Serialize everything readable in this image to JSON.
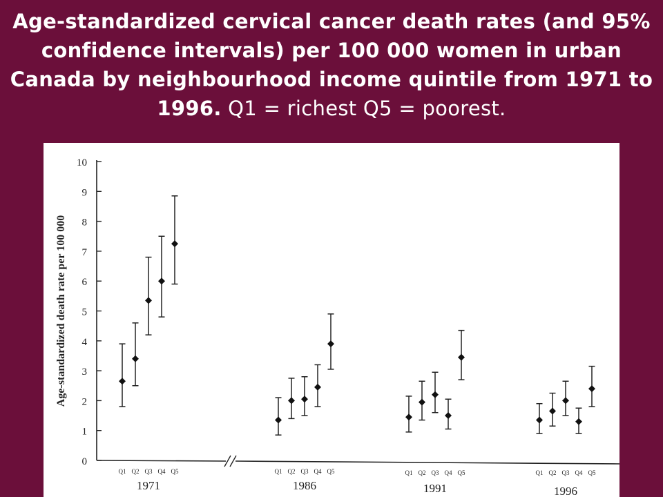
{
  "title": {
    "bold_part": "Age-standardized cervical cancer death rates (and 95% confidence intervals) per 100 000 women in urban Canada by neighbourhood income quintile from 1971 to 1996.",
    "normal_part": " Q1 = richest Q5 = poorest."
  },
  "chart_data": {
    "type": "scatter",
    "ylabel": "Age-standardized death rate per 100 000",
    "ylim": [
      0,
      10
    ],
    "yticks": [
      "0",
      "1",
      "2",
      "3",
      "4",
      "5",
      "6",
      "7",
      "8",
      "9",
      "10"
    ],
    "quintile_labels": [
      "Q1",
      "Q2",
      "Q3",
      "Q4",
      "Q5"
    ],
    "groups": [
      {
        "year": "1971",
        "values": [
          2.65,
          3.4,
          5.35,
          6.0,
          7.25
        ],
        "ci_low": [
          1.8,
          2.5,
          4.2,
          4.8,
          5.9
        ],
        "ci_high": [
          3.9,
          4.6,
          6.8,
          7.5,
          8.85
        ]
      },
      {
        "year": "1986",
        "values": [
          1.35,
          2.0,
          2.05,
          2.45,
          3.9
        ],
        "ci_low": [
          0.85,
          1.4,
          1.5,
          1.8,
          3.05
        ],
        "ci_high": [
          2.1,
          2.75,
          2.8,
          3.2,
          4.9
        ]
      },
      {
        "year": "1991",
        "values": [
          1.45,
          1.95,
          2.2,
          1.5,
          3.45
        ],
        "ci_low": [
          0.95,
          1.35,
          1.6,
          1.05,
          2.7
        ],
        "ci_high": [
          2.15,
          2.65,
          2.95,
          2.05,
          4.35
        ]
      },
      {
        "year": "1996",
        "values": [
          1.35,
          1.65,
          2.0,
          1.3,
          2.4
        ],
        "ci_low": [
          0.9,
          1.15,
          1.5,
          0.9,
          1.8
        ],
        "ci_high": [
          1.9,
          2.25,
          2.65,
          1.75,
          3.15
        ]
      }
    ],
    "axis_break": true,
    "grid": false,
    "legend": "none"
  }
}
